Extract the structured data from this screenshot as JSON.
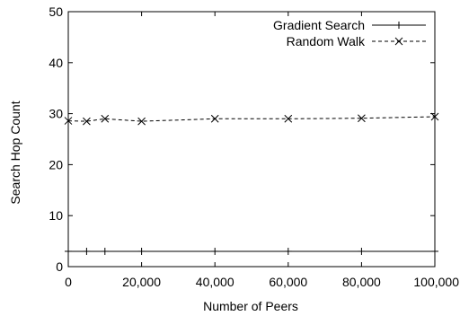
{
  "chart_data": {
    "type": "line",
    "title": "",
    "xlabel": "Number of Peers",
    "ylabel": "Search Hop Count",
    "xlim": [
      0,
      100000
    ],
    "ylim": [
      0,
      50
    ],
    "x_ticks": [
      0,
      20000,
      40000,
      60000,
      80000,
      100000
    ],
    "x_tick_labels": [
      "0",
      "20,000",
      "40,000",
      "60,000",
      "80,000",
      "100,000"
    ],
    "y_ticks": [
      0,
      10,
      20,
      30,
      40,
      50
    ],
    "y_tick_labels": [
      "0",
      "10",
      "20",
      "30",
      "40",
      "50"
    ],
    "grid": false,
    "legend_position": "top-right",
    "series": [
      {
        "name": "Gradient Search",
        "marker": "plus",
        "line_style": "solid",
        "x": [
          0,
          5000,
          10000,
          20000,
          40000,
          60000,
          80000,
          100000
        ],
        "y": [
          3,
          3,
          3,
          3,
          3,
          3,
          3,
          3
        ]
      },
      {
        "name": "Random Walk",
        "marker": "cross",
        "line_style": "dashed",
        "x": [
          0,
          5000,
          10000,
          20000,
          40000,
          60000,
          80000,
          100000
        ],
        "y": [
          28.6,
          28.5,
          29.0,
          28.5,
          29.0,
          29.0,
          29.1,
          29.4
        ]
      }
    ]
  }
}
